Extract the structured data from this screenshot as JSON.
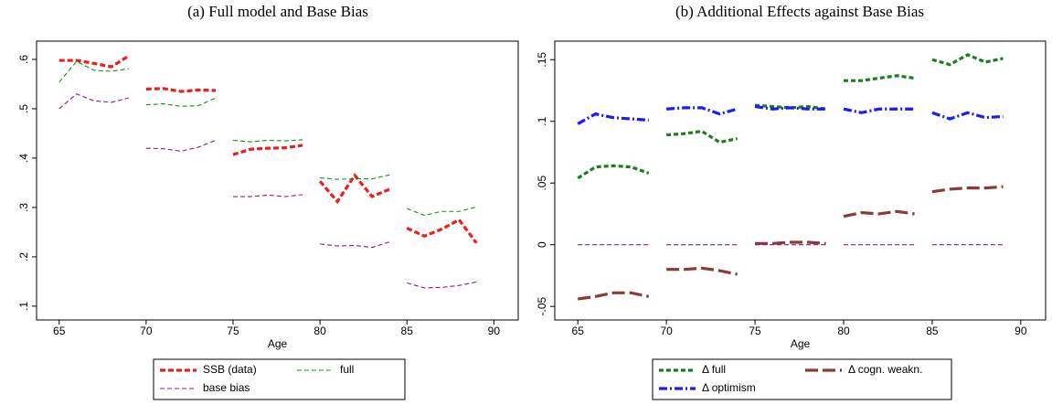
{
  "chart_data": [
    {
      "type": "line",
      "title": "(a) Full model and Base Bias",
      "x_label": "Age",
      "x": [
        65,
        66,
        67,
        68,
        69,
        null,
        70,
        71,
        72,
        73,
        74,
        null,
        75,
        76,
        77,
        78,
        79,
        null,
        80,
        81,
        82,
        83,
        84,
        null,
        85,
        86,
        87,
        88,
        89
      ],
      "xlim": [
        63.7,
        91.4
      ],
      "xticks": [
        65,
        70,
        75,
        80,
        85,
        90
      ],
      "ylim": [
        0.072,
        0.637
      ],
      "yticks": [
        {
          "value": 0.1,
          "label": ".1"
        },
        {
          "value": 0.2,
          "label": ".2"
        },
        {
          "value": 0.3,
          "label": ".3"
        },
        {
          "value": 0.4,
          "label": ".4"
        },
        {
          "value": 0.5,
          "label": ".5"
        },
        {
          "value": 0.6,
          "label": ".6"
        }
      ],
      "series": [
        {
          "name": "SSB (data)",
          "color": "#e8201e",
          "values": [
            0.598,
            0.598,
            0.592,
            0.585,
            0.607,
            null,
            0.54,
            0.541,
            0.535,
            0.538,
            0.537,
            null,
            0.407,
            0.418,
            0.42,
            0.421,
            0.426,
            null,
            0.353,
            0.312,
            0.365,
            0.322,
            0.337,
            null,
            0.258,
            0.242,
            0.256,
            0.275,
            0.228
          ]
        },
        {
          "name": "full",
          "color": "#1a8f1a",
          "values": [
            0.554,
            0.596,
            0.578,
            0.576,
            0.581,
            null,
            0.508,
            0.51,
            0.505,
            0.506,
            0.522,
            null,
            0.436,
            0.433,
            0.436,
            0.435,
            0.437,
            null,
            0.36,
            0.357,
            0.358,
            0.358,
            0.366,
            null,
            0.298,
            0.284,
            0.292,
            0.292,
            0.301
          ]
        },
        {
          "name": "base bias",
          "color": "#8b1a8b",
          "values": [
            0.5,
            0.53,
            0.516,
            0.513,
            0.522,
            null,
            0.42,
            0.419,
            0.414,
            0.422,
            0.436,
            null,
            0.322,
            0.322,
            0.325,
            0.322,
            0.326,
            null,
            0.226,
            0.222,
            0.223,
            0.219,
            0.23,
            null,
            0.147,
            0.137,
            0.138,
            0.142,
            0.149
          ]
        }
      ]
    },
    {
      "type": "line",
      "title": "(b) Additional Effects against Base Bias",
      "x_label": "Age",
      "x": [
        65,
        66,
        67,
        68,
        69,
        null,
        70,
        71,
        72,
        73,
        74,
        null,
        75,
        76,
        77,
        78,
        79,
        null,
        80,
        81,
        82,
        83,
        84,
        null,
        85,
        86,
        87,
        88,
        89
      ],
      "xlim": [
        63.7,
        91.4
      ],
      "xticks": [
        65,
        70,
        75,
        80,
        85,
        90
      ],
      "ylim": [
        -0.061,
        0.165
      ],
      "yticks": [
        {
          "value": -0.05,
          "label": "-.05"
        },
        0,
        {
          "value": 0.05,
          "label": ".05"
        },
        {
          "value": 0.1,
          "label": ".1"
        },
        {
          "value": 0.15,
          "label": ".15"
        }
      ],
      "series": [
        {
          "name": "Δ full",
          "color": "#1a7f1a",
          "values": [
            0.054,
            0.063,
            0.064,
            0.063,
            0.058,
            null,
            0.089,
            0.09,
            0.092,
            0.083,
            0.086,
            null,
            0.113,
            0.112,
            0.111,
            0.112,
            0.11,
            null,
            0.133,
            0.133,
            0.135,
            0.137,
            0.135,
            null,
            0.15,
            0.146,
            0.154,
            0.148,
            0.151
          ]
        },
        {
          "name": "Δ cogn. weakn.",
          "color": "#8b3a3a",
          "values": [
            -0.044,
            -0.042,
            -0.039,
            -0.039,
            -0.042,
            null,
            -0.02,
            -0.02,
            -0.019,
            -0.021,
            -0.024,
            null,
            0.001,
            0.001,
            0.002,
            0.002,
            0.001,
            null,
            0.023,
            0.026,
            0.025,
            0.027,
            0.025,
            null,
            0.043,
            0.045,
            0.046,
            0.046,
            0.047
          ]
        },
        {
          "name": "Δ optimism",
          "color": "#1a1aff",
          "values": [
            0.098,
            0.106,
            0.103,
            0.102,
            0.101,
            null,
            0.11,
            0.111,
            0.111,
            0.106,
            0.11,
            null,
            0.112,
            0.11,
            0.111,
            0.11,
            0.11,
            null,
            0.11,
            0.107,
            0.11,
            0.11,
            0.11,
            null,
            0.107,
            0.102,
            0.107,
            0.103,
            0.104
          ]
        },
        {
          "color": "#8b1a8b",
          "values": [
            0,
            0,
            0,
            0,
            0,
            null,
            0,
            0,
            0,
            0,
            0,
            null,
            0,
            0,
            0,
            0,
            0,
            null,
            0,
            0,
            0,
            0,
            0,
            null,
            0,
            0,
            0,
            0,
            0
          ]
        }
      ]
    }
  ]
}
